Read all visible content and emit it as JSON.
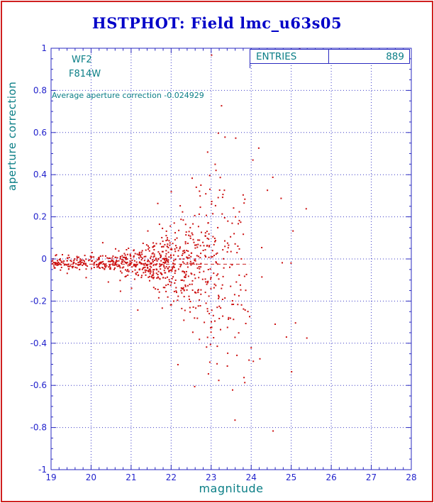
{
  "page": {
    "title": "HSTPHOT: Field lmc_u63s05"
  },
  "chart_data": {
    "type": "scatter",
    "title": "HSTPHOT: Field lmc_u63s05",
    "xlabel": "magnitude",
    "ylabel": "aperture correction",
    "xlim": [
      19,
      28
    ],
    "ylim": [
      -1,
      1
    ],
    "x_ticks": [
      19,
      20,
      21,
      22,
      23,
      24,
      25,
      26,
      27,
      28
    ],
    "x_tick_labels": [
      "19",
      "20",
      "21",
      "22",
      "23",
      "24",
      "25",
      "26",
      "27",
      "28"
    ],
    "y_ticks": [
      -1,
      -0.8,
      -0.6,
      -0.4,
      -0.2,
      0,
      0.2,
      0.4,
      0.6,
      0.8,
      1
    ],
    "y_tick_labels": [
      "-1",
      "-0.8",
      "-0.6",
      "-0.4",
      "-0.2",
      "0",
      "0.2",
      "0.4",
      "0.6",
      "0.8",
      "1"
    ],
    "x_minor_step": 0.2,
    "y_minor_step": 0.05,
    "grid": true,
    "legend": false,
    "annotations": {
      "detector": "WF2",
      "filter": "F814W",
      "average_label": "Average aperture correction -0.024929"
    },
    "stats_box": {
      "label": "ENTRIES",
      "value": "889"
    },
    "entries": 889,
    "average_aperture_correction": -0.024929,
    "mean_line": {
      "y": -0.024929,
      "x_start": 19,
      "x_end": 23.95,
      "color": "#cc2222",
      "style": "dashed"
    },
    "marker": {
      "color": "#cc1111",
      "size": 2
    },
    "colors": {
      "axis": "#2929c0",
      "grid": "#3b3bc6",
      "tick_text": "#2222cc",
      "labels": "#0a7e86",
      "title": "#0000c8",
      "page_border": "#d02020"
    },
    "point_generation": {
      "seed": 46389,
      "count": 889,
      "y_center": -0.02,
      "sigma_base": 0.016,
      "sigma_scale": 0.34,
      "sigma_x0": 19.3,
      "sigma_span": 4.6,
      "sigma_power": 3,
      "sigma_max": 0.42,
      "outlier_prob": 0.07,
      "outlier_mult": 2.4,
      "clusters": [
        {
          "weight": 0.2,
          "type": "uniform",
          "x_min": 19.02,
          "x_max": 21.0
        },
        {
          "weight": 0.56,
          "type": "gauss",
          "x_mean": 22.1,
          "x_sd": 0.8,
          "x_min": 20.2,
          "x_max": 24.3
        },
        {
          "weight": 0.21,
          "type": "uniform",
          "x_min": 21.0,
          "x_max": 23.9
        },
        {
          "weight": 0.03,
          "type": "uniform",
          "x_min": 23.8,
          "x_max": 25.45
        }
      ]
    }
  }
}
